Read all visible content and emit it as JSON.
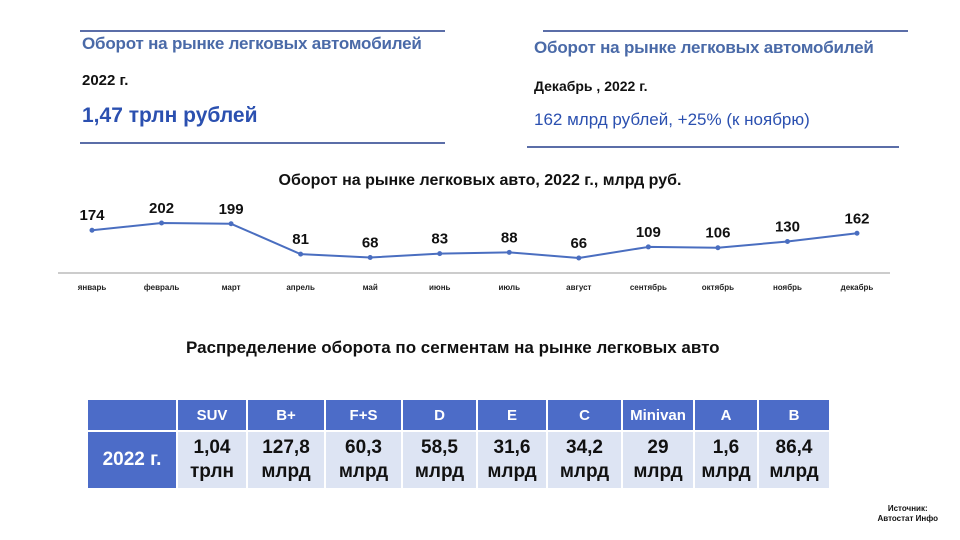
{
  "card_left": {
    "title": "Оборот на рынке легковых автомобилей",
    "period": "2022 г.",
    "value": "1,47 трлн рублей"
  },
  "card_right": {
    "title": "Оборот на рынке легковых автомобилей",
    "period": "Декабрь , 2022 г.",
    "value": "162 млрд рублей, +25% (к ноябрю)"
  },
  "chart_data": {
    "type": "line",
    "title": "Оборот на рынке легковых авто, 2022 г., млрд руб.",
    "categories": [
      "январь",
      "февраль",
      "март",
      "апрель",
      "май",
      "июнь",
      "июль",
      "август",
      "сентябрь",
      "октябрь",
      "ноябрь",
      "декабрь"
    ],
    "values": [
      174,
      202,
      199,
      81,
      68,
      83,
      88,
      66,
      109,
      106,
      130,
      162
    ],
    "xlabel": "",
    "ylabel": "",
    "series_color": "#4a6ec0"
  },
  "segments": {
    "title": "Распределение оборота по сегментам на рынке легковых авто",
    "year_label": "2022 г.",
    "headers": [
      "SUV",
      "B+",
      "F+S",
      "D",
      "E",
      "C",
      "Minivan",
      "A",
      "B"
    ],
    "values": [
      {
        "num": "1,04",
        "unit": "трлн"
      },
      {
        "num": "127,8",
        "unit": "млрд"
      },
      {
        "num": "60,3",
        "unit": "млрд"
      },
      {
        "num": "58,5",
        "unit": "млрд"
      },
      {
        "num": "31,6",
        "unit": "млрд"
      },
      {
        "num": "34,2",
        "unit": "млрд"
      },
      {
        "num": "29",
        "unit": "млрд"
      },
      {
        "num": "1,6",
        "unit": "млрд"
      },
      {
        "num": "86,4",
        "unit": "млрд"
      }
    ]
  },
  "source": {
    "label": "Источник:",
    "name": "Автостат Инфо"
  }
}
